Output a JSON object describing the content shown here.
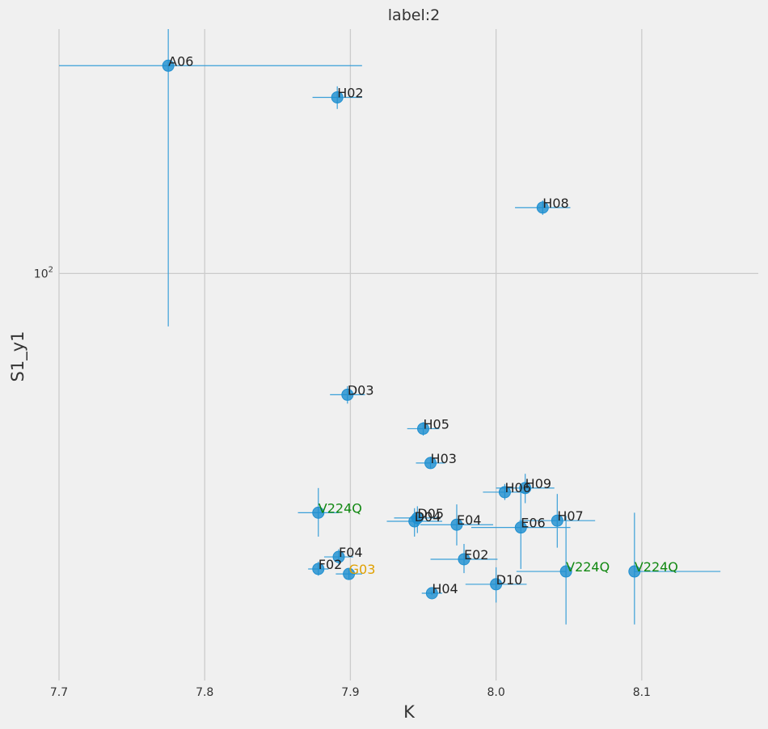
{
  "chart_data": {
    "type": "scatter",
    "title": "label:2",
    "xlabel": "K",
    "ylabel": "S1_y1",
    "xlim": [
      7.7,
      8.18
    ],
    "ylim": [
      18,
      280
    ],
    "yscale": "log",
    "grid": true,
    "x_ticks": [
      7.7,
      7.8,
      7.9,
      8.0,
      8.1
    ],
    "x_tick_labels": [
      "7.7",
      "7.8",
      "7.9",
      "8.0",
      "8.1"
    ],
    "y_ticks": [
      100
    ],
    "y_tick_base": "10",
    "y_tick_exp": "2",
    "marker_color": "#1f8fd0",
    "error_color": "#3a9fd8",
    "label_colors": {
      "default": "#222222",
      "green": "#118811",
      "orange": "#e0a000"
    },
    "points": [
      {
        "label": "A06",
        "x": 7.775,
        "y": 240,
        "xerr": [
          0.075,
          0.133
        ],
        "yerr": [
          80,
          320
        ],
        "label_color": "default"
      },
      {
        "label": "H02",
        "x": 7.891,
        "y": 210,
        "xerr": [
          0.017,
          0.017
        ],
        "yerr": [
          200,
          220
        ],
        "label_color": "default"
      },
      {
        "label": "H08",
        "x": 8.032,
        "y": 132,
        "xerr": [
          0.019,
          0.019
        ],
        "yerr": [
          128,
          136
        ],
        "label_color": "default"
      },
      {
        "label": "D03",
        "x": 7.898,
        "y": 60,
        "xerr": [
          0.012,
          0.012
        ],
        "yerr": [
          57.8,
          62.2
        ],
        "label_color": "default"
      },
      {
        "label": "H05",
        "x": 7.95,
        "y": 52,
        "xerr": [
          0.011,
          0.011
        ],
        "yerr": [
          50.5,
          53.5
        ],
        "label_color": "default"
      },
      {
        "label": "H03",
        "x": 7.955,
        "y": 45,
        "xerr": [
          0.01,
          0.01
        ],
        "yerr": [
          44,
          46.2
        ],
        "label_color": "default"
      },
      {
        "label": "H06",
        "x": 8.006,
        "y": 39.8,
        "xerr": [
          0.015,
          0.015
        ],
        "yerr": [
          38.5,
          41.2
        ],
        "label_color": "default"
      },
      {
        "label": "H09",
        "x": 8.02,
        "y": 40.5,
        "xerr": [
          0.02,
          0.02
        ],
        "yerr": [
          38.0,
          43.0
        ],
        "label_color": "default"
      },
      {
        "label": "V224Q",
        "x": 7.878,
        "y": 36.5,
        "xerr": [
          0.014,
          0.014
        ],
        "yerr": [
          33.0,
          40.5
        ],
        "label_color": "green"
      },
      {
        "label": "D05",
        "x": 7.946,
        "y": 35.7,
        "xerr": [
          0.016,
          0.016
        ],
        "yerr": [
          33.5,
          37.5
        ],
        "label_color": "default"
      },
      {
        "label": "D04",
        "x": 7.944,
        "y": 35.2,
        "xerr": [
          0.019,
          0.019
        ],
        "yerr": [
          33.0,
          37.2
        ],
        "label_color": "default"
      },
      {
        "label": "E04",
        "x": 7.973,
        "y": 34.7,
        "xerr": [
          0.025,
          0.025
        ],
        "yerr": [
          31.8,
          37.8
        ],
        "label_color": "default"
      },
      {
        "label": "H07",
        "x": 8.042,
        "y": 35.3,
        "xerr": [
          0.026,
          0.026
        ],
        "yerr": [
          31.5,
          39.5
        ],
        "label_color": "default"
      },
      {
        "label": "E06",
        "x": 8.017,
        "y": 34.3,
        "xerr": [
          0.034,
          0.034
        ],
        "yerr": [
          28.8,
          41.0
        ],
        "label_color": "default"
      },
      {
        "label": "F04",
        "x": 7.892,
        "y": 30.3,
        "xerr": [
          0.01,
          0.01
        ],
        "yerr": [
          29.3,
          31.3
        ],
        "label_color": "default"
      },
      {
        "label": "E02",
        "x": 7.978,
        "y": 30.0,
        "xerr": [
          0.023,
          0.023
        ],
        "yerr": [
          28.3,
          32.0
        ],
        "label_color": "default"
      },
      {
        "label": "F02",
        "x": 7.878,
        "y": 28.8,
        "xerr": [
          0.007,
          0.007
        ],
        "yerr": [
          28.0,
          29.7
        ],
        "label_color": "default"
      },
      {
        "label": "G03",
        "x": 7.899,
        "y": 28.2,
        "xerr": [
          0.009,
          0.009
        ],
        "yerr": [
          27.6,
          28.8
        ],
        "label_color": "orange"
      },
      {
        "label": "V224Q",
        "x": 8.048,
        "y": 28.5,
        "xerr": [
          0.034,
          0.0
        ],
        "yerr": [
          22.8,
          36.0
        ],
        "label_color": "green"
      },
      {
        "label": "V224Q",
        "x": 8.095,
        "y": 28.5,
        "xerr": [
          0.0,
          0.059
        ],
        "yerr": [
          22.8,
          36.5
        ],
        "label_color": "green"
      },
      {
        "label": "D10",
        "x": 8.0,
        "y": 27.0,
        "xerr": [
          0.021,
          0.021
        ],
        "yerr": [
          25.0,
          29.0
        ],
        "label_color": "default"
      },
      {
        "label": "H04",
        "x": 7.956,
        "y": 26.0,
        "xerr": [
          0.007,
          0.007
        ],
        "yerr": [
          25.8,
          26.2
        ],
        "label_color": "default"
      }
    ]
  }
}
